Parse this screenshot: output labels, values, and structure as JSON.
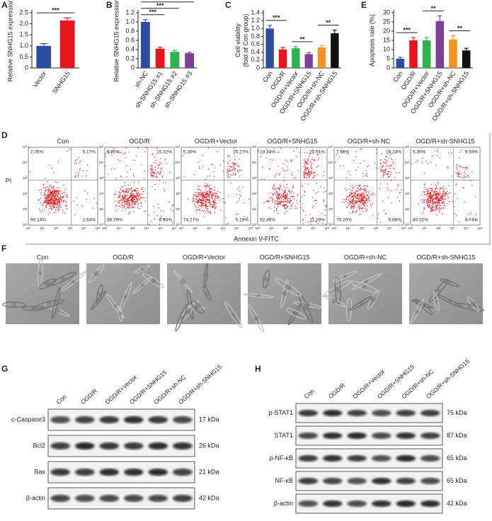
{
  "chart_data": [
    {
      "type": "bar",
      "panel": "A",
      "ylabel": "Relative SNHG15 expression",
      "categories": [
        "Vector",
        "SNHG15"
      ],
      "values": [
        1.0,
        2.15
      ],
      "errors": [
        0.1,
        0.12
      ],
      "colors": [
        "#2a4fa0",
        "#e8161c"
      ],
      "ylim": [
        0,
        2.5
      ],
      "yticks": [
        0,
        0.5,
        {
          "value": 1,
          "label": "1.0"
        },
        1.5,
        {
          "value": 2,
          "label": "2.0"
        },
        2.5
      ],
      "annotations": [
        {
          "text": "***",
          "from": "Vector",
          "to": "SNHG15"
        }
      ]
    },
    {
      "type": "bar",
      "panel": "B",
      "ylabel": "Relative SNHG15 expression",
      "categories": [
        "sh-NC",
        "sh-SNHG15 #1",
        "sh-SNHG15 #2",
        "sh-SNHG15 #3"
      ],
      "values": [
        1.0,
        0.42,
        0.35,
        0.32
      ],
      "errors": [
        0.05,
        0.03,
        0.03,
        0.02
      ],
      "colors": [
        "#2a4fa0",
        "#e8161c",
        "#2db34a",
        "#7b3f98"
      ],
      "ylim": [
        0,
        1.2
      ],
      "yticks": [
        0,
        0.2,
        0.4,
        0.6,
        0.8,
        {
          "value": 1,
          "label": "1.0"
        },
        1.2
      ],
      "annotations": [
        {
          "text": "***",
          "from": "sh-NC",
          "to": "sh-SNHG15 #1"
        },
        {
          "text": "***",
          "from": "sh-NC",
          "to": "sh-SNHG15 #2"
        },
        {
          "text": "***",
          "from": "sh-NC",
          "to": "sh-SNHG15 #3"
        }
      ]
    },
    {
      "type": "bar",
      "panel": "C",
      "ylabel": [
        "Cell viability",
        "(fold of Con group)"
      ],
      "categories": [
        "Con",
        "OGD/R",
        "OGD/R+Vector",
        "OGD/R+SNHG15",
        "OGD/R+sh-NC",
        "OGD/R+sh-SNHG15"
      ],
      "values": [
        1.0,
        0.47,
        0.5,
        0.35,
        0.52,
        0.88
      ],
      "errors": [
        0.08,
        0.05,
        0.04,
        0.04,
        0.05,
        0.08
      ],
      "colors": [
        "#2a4fa0",
        "#e8161c",
        "#2db34a",
        "#7b3f98",
        "#f39322",
        "#111111"
      ],
      "ylim": [
        0,
        1.4
      ],
      "yticks": [
        0,
        0.2,
        0.4,
        0.6,
        0.8,
        {
          "value": 1,
          "label": "1.0"
        },
        1.2,
        1.4
      ],
      "annotations": [
        {
          "text": "***",
          "from": "Con",
          "to": "OGD/R"
        },
        {
          "text": "**",
          "from": "OGD/R+Vector",
          "to": "OGD/R+SNHG15"
        },
        {
          "text": "**",
          "from": "OGD/R+sh-NC",
          "to": "OGD/R+sh-SNHG15"
        }
      ]
    },
    {
      "type": "bar",
      "panel": "E",
      "ylabel": "Apoptosis rate (%)",
      "categories": [
        "Con",
        "OGD/R",
        "OGD/R+Vector",
        "OGD/R+SNHG15",
        "OGD/R+sh-NC",
        "OGD/R+sh-SNHG15"
      ],
      "values": [
        5,
        15,
        15,
        25.5,
        15.5,
        9.5
      ],
      "errors": [
        0.8,
        1.5,
        1.5,
        2.8,
        2,
        1.2
      ],
      "colors": [
        "#2a4fa0",
        "#e8161c",
        "#2db34a",
        "#7b3f98",
        "#f39322",
        "#111111"
      ],
      "ylim": [
        0,
        30
      ],
      "yticks": [
        0,
        5,
        10,
        15,
        20,
        25,
        30
      ],
      "annotations": [
        {
          "text": "***",
          "from": "Con",
          "to": "OGD/R"
        },
        {
          "text": "**",
          "from": "OGD/R+Vector",
          "to": "OGD/R+SNHG15"
        },
        {
          "text": "**",
          "from": "OGD/R+sh-NC",
          "to": "OGD/R+sh-SNHG15"
        }
      ]
    }
  ],
  "flow": {
    "panel": "D",
    "ylabel": "PI",
    "xlabel": "Annexin V-FITC",
    "ticks": [
      "10⁰",
      "10¹",
      "10²",
      "10³",
      "10⁴",
      "10⁵"
    ],
    "plots": [
      {
        "title": "Con",
        "quadrants": [
          "2.05%",
          "5.17%",
          "90.14%",
          "2.64%"
        ]
      },
      {
        "title": "OGD/R",
        "quadrants": [
          "8.95%",
          "15.32%",
          "68.79%",
          "6.94%"
        ]
      },
      {
        "title": "OGD/R+Vector",
        "quadrants": [
          "5.30%",
          "15.27%",
          "74.27%",
          "5.16%"
        ]
      },
      {
        "title": "OGD/R+SNHG15",
        "quadrants": [
          "10.34%",
          "25.91%",
          "52.46%",
          "11.29%"
        ]
      },
      {
        "title": "OGD/R+sh-NC",
        "quadrants": [
          "7.68%",
          "16.24%",
          "70.20%",
          "5.88%"
        ]
      },
      {
        "title": "OGD/R+sh-SNHG15",
        "quadrants": [
          "5.35%",
          "9.59%",
          "80.32%",
          "4.74%"
        ]
      }
    ]
  },
  "micrographs": {
    "panel": "F",
    "titles": [
      "Con",
      "OGD/R",
      "OGD/R+Vector",
      "OGD/R+SNHG15",
      "OGD/R+sh-NC",
      "OGD/R+sh-SNHG15"
    ]
  },
  "blots": [
    {
      "panel": "G",
      "lanes": [
        "Con",
        "OGD/R",
        "OGD/R+Vector",
        "OGD/R+SNHG15",
        "OGD/R+sh-NC",
        "OGD/R+sh-SNHG15"
      ],
      "rows": [
        {
          "protein": "c-Caspase3",
          "size": "17 kDa"
        },
        {
          "protein": "Bcl2",
          "size": "26 kDa"
        },
        {
          "protein": "Bax",
          "size": "21 kDa"
        },
        {
          "protein": "β-actin",
          "size": "42 kDa"
        }
      ]
    },
    {
      "panel": "H",
      "lanes": [
        "Con",
        "OGD/R",
        "OGD/R+Vector",
        "OGD/R+SNHG15",
        "OGD/R+sh-NC",
        "OGD/R+sh-SNHG15"
      ],
      "rows": [
        {
          "protein": "p-STAT1",
          "size": "75 kDa"
        },
        {
          "protein": "STAT1",
          "size": "87 kDa"
        },
        {
          "protein": "p-NF-κB",
          "size": "65 kDa"
        },
        {
          "protein": "NF-κB",
          "size": "65 kDa"
        },
        {
          "protein": "β-actin",
          "size": "42 kDa"
        }
      ]
    }
  ]
}
